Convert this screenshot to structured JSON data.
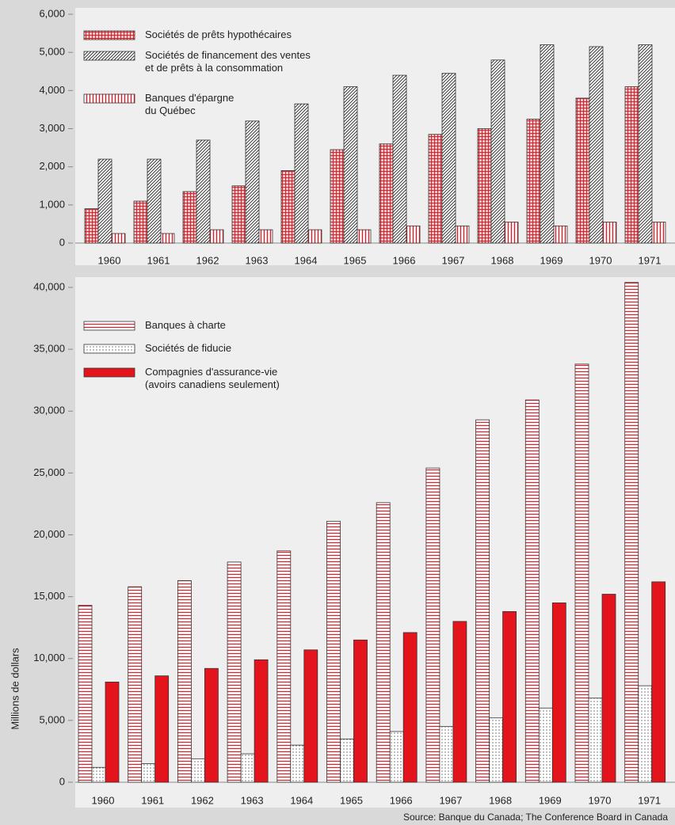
{
  "chart_data": [
    {
      "type": "bar",
      "categories": [
        "1960",
        "1961",
        "1962",
        "1963",
        "1964",
        "1965",
        "1966",
        "1967",
        "1968",
        "1969",
        "1970",
        "1971"
      ],
      "series": [
        {
          "name": "Sociétés de prêts hypothécaires",
          "color": "#d8202a",
          "pattern": "grid",
          "values": [
            900,
            1100,
            1350,
            1500,
            1900,
            2450,
            2600,
            2850,
            3000,
            3250,
            3800,
            4100
          ]
        },
        {
          "name": "Sociétés de financement des ventes\net de prêts à la consommation",
          "color": "#222222",
          "pattern": "diagonal",
          "values": [
            2200,
            2200,
            2700,
            3200,
            3650,
            4100,
            4400,
            4450,
            4800,
            5200,
            5150,
            5200
          ]
        },
        {
          "name": "Banques d'épargne\ndu Québec",
          "color": "#d8202a",
          "pattern": "vertical",
          "values": [
            250,
            250,
            350,
            350,
            350,
            350,
            450,
            450,
            550,
            450,
            550,
            550
          ]
        }
      ],
      "ylim": [
        0,
        6000
      ],
      "yticks": [
        0,
        {
          "value": 1000,
          "label": "1,000"
        },
        {
          "value": 2000,
          "label": "2,000"
        },
        {
          "value": 3000,
          "label": "3,000"
        },
        {
          "value": 4000,
          "label": "4,000"
        },
        {
          "value": 5000,
          "label": "5,000"
        },
        {
          "value": 6000,
          "label": "6,000"
        }
      ]
    },
    {
      "type": "bar",
      "y_label": "Millions de dollars",
      "source": "Source: Banque du Canada; The Conference Board in Canada",
      "categories": [
        "1960",
        "1961",
        "1962",
        "1963",
        "1964",
        "1965",
        "1966",
        "1967",
        "1968",
        "1969",
        "1970",
        "1971"
      ],
      "series": [
        {
          "name": "Banques à charte",
          "color": "#d8202a",
          "pattern": "horizontal",
          "values": [
            14300,
            15800,
            16300,
            17800,
            18700,
            21100,
            22600,
            25400,
            29300,
            30900,
            33800,
            40400
          ]
        },
        {
          "name": "Sociétés de fiducie",
          "color": "#222222",
          "pattern": "dots",
          "values": [
            1200,
            1500,
            1900,
            2300,
            3000,
            3500,
            4100,
            4500,
            5200,
            6000,
            6800,
            7800
          ]
        },
        {
          "name": "Compagnies d'assurance-vie\n(avoirs canadiens seulement)",
          "color": "#e3141c",
          "pattern": "solid",
          "values": [
            8100,
            8600,
            9200,
            9900,
            10700,
            11500,
            12100,
            13000,
            13800,
            14500,
            15200,
            16200
          ]
        }
      ],
      "ylim": [
        0,
        40000
      ],
      "yticks": [
        0,
        {
          "value": 5000,
          "label": "5,000"
        },
        {
          "value": 10000,
          "label": "10,000"
        },
        {
          "value": 15000,
          "label": "15,000"
        },
        {
          "value": 20000,
          "label": "20,000"
        },
        {
          "value": 25000,
          "label": "25,000"
        },
        {
          "value": 30000,
          "label": "30,000"
        },
        {
          "value": 35000,
          "label": "35,000"
        },
        {
          "value": 40000,
          "label": "40,000"
        }
      ]
    }
  ]
}
